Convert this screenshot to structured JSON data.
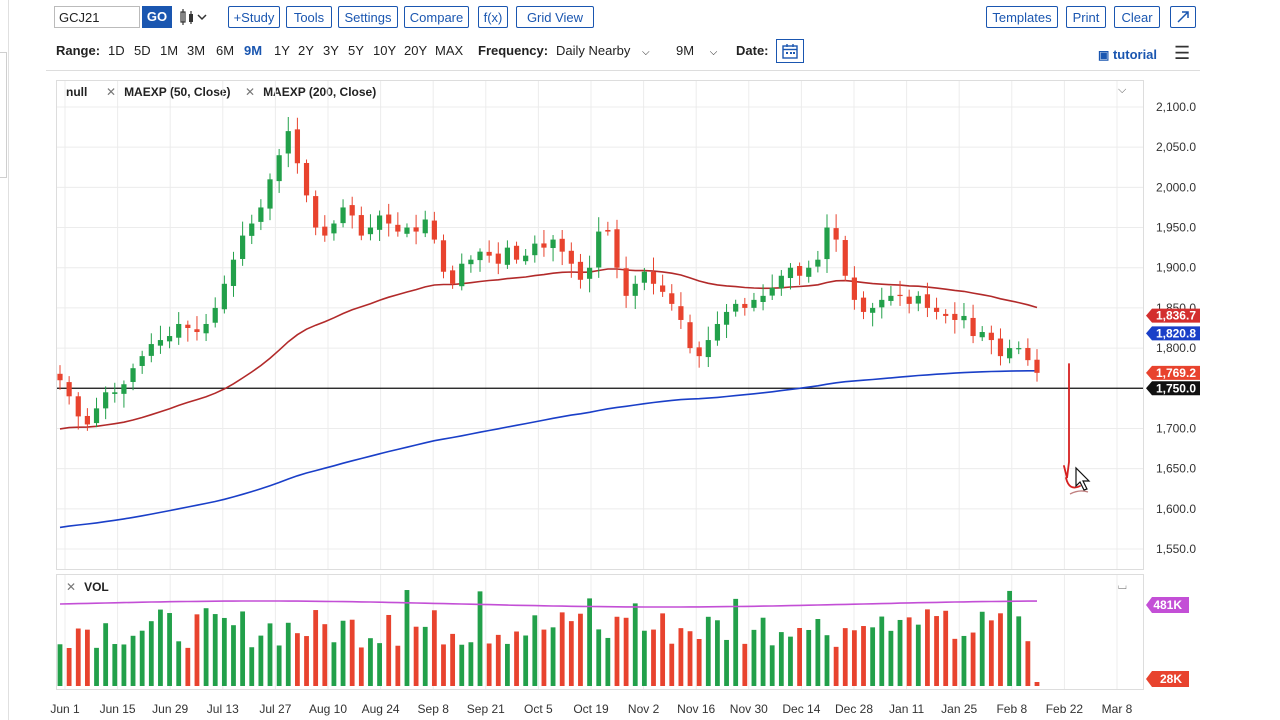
{
  "toolbar": {
    "symbol": "GCJ21",
    "go_label": "GO",
    "chart_type_icon": "candlestick-icon",
    "buttons": [
      "+Study",
      "Tools",
      "Settings",
      "Compare",
      "f(x)",
      "Grid View"
    ],
    "right_buttons": [
      "Templates",
      "Print",
      "Clear"
    ],
    "expand_icon": "expand-icon"
  },
  "range_bar": {
    "range_label": "Range:",
    "ranges": [
      "1D",
      "5D",
      "1M",
      "3M",
      "6M",
      "9M",
      "1Y",
      "2Y",
      "3Y",
      "5Y",
      "10Y",
      "20Y",
      "MAX"
    ],
    "active_range": "9M",
    "frequency_label": "Frequency:",
    "frequency_value": "Daily Nearby",
    "period_value": "9M",
    "date_label": "Date:",
    "tutorial_label": "tutorial",
    "menu_icon": "hamburger-icon",
    "calendar_icon": "calendar-icon"
  },
  "legend": {
    "symbol_label": "null",
    "studies": [
      "MAEXP (50, Close)",
      "MAEXP (200, Close)"
    ],
    "volume_label": "VOL"
  },
  "colors": {
    "up": "#22a04a",
    "down": "#e8432e",
    "ma50": "#b22a2a",
    "ma200": "#1a3fc8",
    "vol_ma": "#c34fd6",
    "accent": "#1a56b0"
  },
  "chart_data": [
    {
      "type": "candlestick",
      "y_ticks": [
        "2,100.0",
        "2,050.0",
        "2,000.0",
        "1,950.0",
        "1,900.0",
        "1,850.0",
        "1,800.0",
        "1,750.0",
        "1,700.0",
        "1,650.0",
        "1,600.0",
        "1,550.0"
      ],
      "ylim": [
        1530,
        2120
      ],
      "x_ticks": [
        "Jun 1",
        "Jun 15",
        "Jun 29",
        "Jul 13",
        "Jul 27",
        "Aug 10",
        "Aug 24",
        "Sep 8",
        "Sep 21",
        "Oct 5",
        "Oct 19",
        "Nov 2",
        "Nov 16",
        "Nov 30",
        "Dec 14",
        "Dec 28",
        "Jan 11",
        "Jan 25",
        "Feb 8",
        "Feb 22",
        "Mar 8"
      ],
      "price_labels": [
        {
          "value": "1,836.7",
          "color": "#d32f2f"
        },
        {
          "value": "1,820.8",
          "color": "#1a3fc8"
        },
        {
          "value": "1,769.2",
          "color": "#e8432e"
        },
        {
          "value": "1,750.0",
          "color": "#111111"
        }
      ],
      "horizontal_line": 1750,
      "close_path": [
        1760,
        1740,
        1715,
        1705,
        1725,
        1745,
        1745,
        1755,
        1775,
        1790,
        1805,
        1810,
        1815,
        1830,
        1825,
        1820,
        1830,
        1850,
        1880,
        1910,
        1940,
        1955,
        1975,
        2010,
        2040,
        2070,
        2030,
        1990,
        1950,
        1940,
        1955,
        1975,
        1965,
        1940,
        1950,
        1965,
        1955,
        1945,
        1950,
        1945,
        1960,
        1935,
        1895,
        1880,
        1905,
        1910,
        1920,
        1915,
        1905,
        1925,
        1910,
        1915,
        1930,
        1925,
        1935,
        1920,
        1905,
        1885,
        1900,
        1945,
        1945,
        1900,
        1865,
        1880,
        1895,
        1880,
        1870,
        1855,
        1835,
        1800,
        1790,
        1810,
        1830,
        1845,
        1855,
        1850,
        1860,
        1865,
        1875,
        1890,
        1900,
        1890,
        1900,
        1910,
        1950,
        1935,
        1890,
        1860,
        1845,
        1850,
        1860,
        1865,
        1865,
        1855,
        1865,
        1850,
        1845,
        1840,
        1835,
        1840,
        1815,
        1820,
        1810,
        1790,
        1800,
        1800,
        1785,
        1769.2
      ],
      "ma50": {
        "name": "MAEXP (50, Close)",
        "start": 1697,
        "end": 1836.7
      },
      "ma200": {
        "name": "MAEXP (200, Close)",
        "start": 1575,
        "end": 1820.8
      },
      "annotation": "red drawn arrow pointing down from ~1,770 to ~1,650"
    },
    {
      "type": "bar",
      "title": "VOL",
      "y_labels": [
        {
          "value": "481K",
          "color": "#c34fd6"
        },
        {
          "value": "28K",
          "color": "#e8432e"
        }
      ]
    }
  ]
}
